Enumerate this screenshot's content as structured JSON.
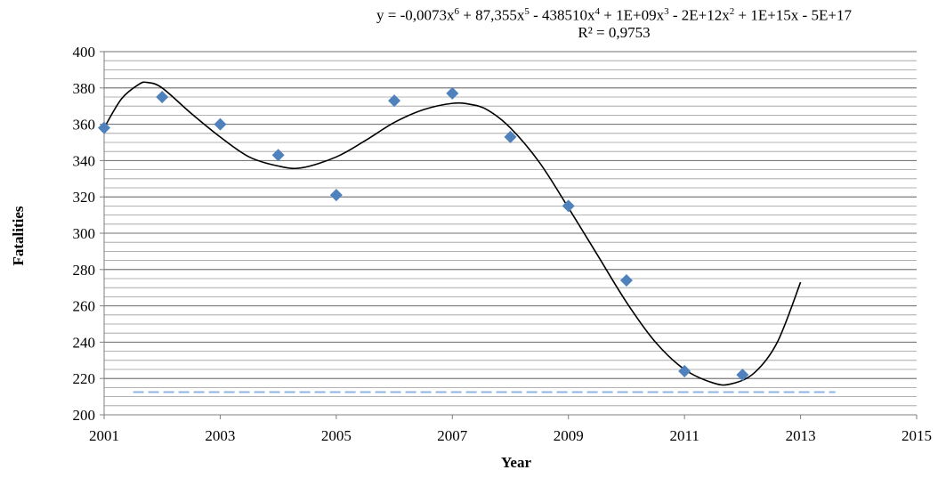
{
  "chart_data": {
    "type": "scatter",
    "title": "",
    "xlabel": "Year",
    "ylabel": "Fatalities",
    "xlim": [
      2001,
      2015
    ],
    "ylim": [
      200,
      400
    ],
    "x_ticks": [
      "2001",
      "2003",
      "2005",
      "2007",
      "2009",
      "2011",
      "2013",
      "2015"
    ],
    "y_ticks": [
      "200",
      "220",
      "240",
      "260",
      "280",
      "300",
      "320",
      "340",
      "360",
      "380",
      "400"
    ],
    "grid": true,
    "marker_color": "#4F81BD",
    "trendline_color": "#000000",
    "dashed_line_color": "#8EB4E3",
    "points": [
      {
        "x": 2001,
        "y": 358
      },
      {
        "x": 2002,
        "y": 375
      },
      {
        "x": 2003,
        "y": 360
      },
      {
        "x": 2004,
        "y": 343
      },
      {
        "x": 2005,
        "y": 321
      },
      {
        "x": 2006,
        "y": 373
      },
      {
        "x": 2007,
        "y": 377
      },
      {
        "x": 2008,
        "y": 353
      },
      {
        "x": 2009,
        "y": 315
      },
      {
        "x": 2010,
        "y": 274
      },
      {
        "x": 2011,
        "y": 224
      },
      {
        "x": 2012,
        "y": 222
      }
    ],
    "trendline": {
      "type": "polynomial-6",
      "equation_parts": {
        "prefix": "y = -0,0073x",
        "e1": "6",
        "p2": " + 87,355x",
        "e2": "5",
        "p3": " - 438510x",
        "e3": "4",
        "p4": " + 1E+09x",
        "e4": "3",
        "p5": " - 2E+12x",
        "e5": "2",
        "p6": " + 1E+15x - 5E+17"
      },
      "r_squared_label": "R² = 0,9753",
      "curve": [
        {
          "x": 2001.0,
          "y": 358
        },
        {
          "x": 2001.3,
          "y": 374
        },
        {
          "x": 2001.6,
          "y": 382
        },
        {
          "x": 2001.75,
          "y": 383
        },
        {
          "x": 2002.0,
          "y": 380
        },
        {
          "x": 2002.5,
          "y": 366
        },
        {
          "x": 2003.0,
          "y": 353
        },
        {
          "x": 2003.5,
          "y": 342
        },
        {
          "x": 2004.0,
          "y": 337
        },
        {
          "x": 2004.4,
          "y": 336
        },
        {
          "x": 2005.0,
          "y": 342
        },
        {
          "x": 2005.5,
          "y": 351
        },
        {
          "x": 2006.0,
          "y": 361
        },
        {
          "x": 2006.5,
          "y": 368
        },
        {
          "x": 2007.0,
          "y": 371.5
        },
        {
          "x": 2007.3,
          "y": 371
        },
        {
          "x": 2007.6,
          "y": 368
        },
        {
          "x": 2008.0,
          "y": 358
        },
        {
          "x": 2008.5,
          "y": 339
        },
        {
          "x": 2009.0,
          "y": 314
        },
        {
          "x": 2009.5,
          "y": 288
        },
        {
          "x": 2010.0,
          "y": 262
        },
        {
          "x": 2010.5,
          "y": 240
        },
        {
          "x": 2011.0,
          "y": 225
        },
        {
          "x": 2011.5,
          "y": 217.5
        },
        {
          "x": 2011.8,
          "y": 217
        },
        {
          "x": 2012.2,
          "y": 223
        },
        {
          "x": 2012.6,
          "y": 240
        },
        {
          "x": 2013.0,
          "y": 273
        }
      ]
    },
    "dashed_line": {
      "x_start": 2001.5,
      "x_end": 2013.6,
      "y": 212.5
    }
  }
}
